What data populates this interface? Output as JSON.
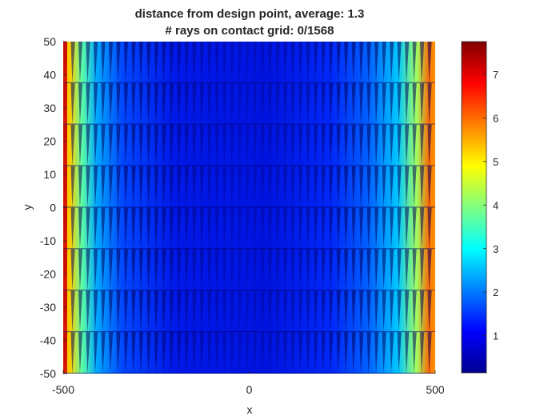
{
  "chart_data": {
    "type": "heatmap",
    "title_line1": "distance from design point, average: 1.3",
    "title_line2": "# rays on contact grid: 0/1568",
    "xlabel": "x",
    "ylabel": "y",
    "xlim": [
      -500,
      500
    ],
    "ylim": [
      -50,
      50
    ],
    "xticks": [
      "-500",
      "0",
      "500"
    ],
    "yticks": [
      "50",
      "40",
      "30",
      "20",
      "10",
      "0",
      "-10",
      "-20",
      "-30",
      "-40",
      "-50"
    ],
    "colorbar": {
      "colormap": "jet",
      "range": [
        0.15,
        7.75
      ],
      "ticks": [
        "1",
        "2",
        "3",
        "4",
        "5",
        "6",
        "7"
      ]
    },
    "grid": false,
    "row_bands": 8,
    "teeth_per_band": 49
  }
}
